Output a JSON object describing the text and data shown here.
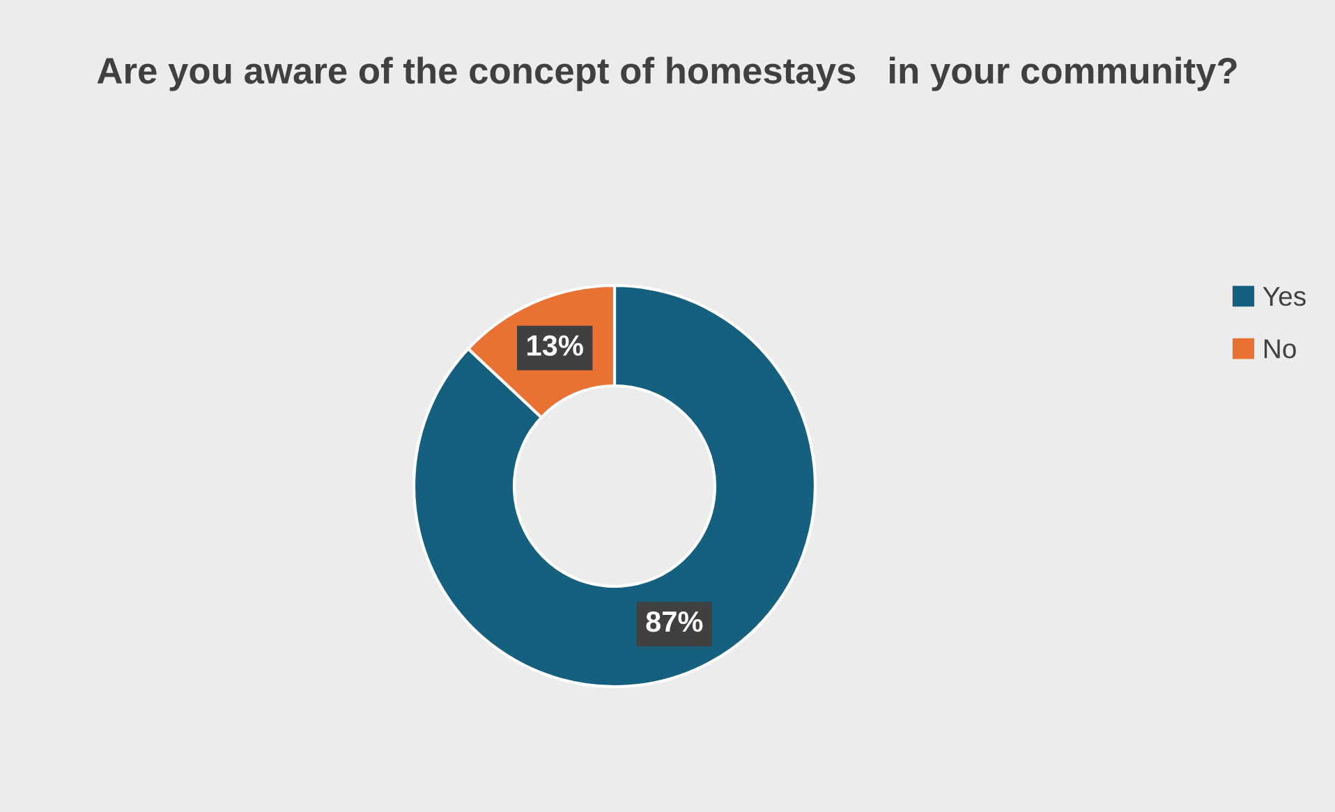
{
  "chart_data": {
    "type": "donut",
    "title": "Are you aware of the concept of homestays   in your community?",
    "categories": [
      "Yes",
      "No"
    ],
    "values": [
      87,
      13
    ],
    "colors": [
      "#16607f",
      "#e97132"
    ],
    "value_labels": [
      "87%",
      "13%"
    ],
    "legend": "right"
  }
}
